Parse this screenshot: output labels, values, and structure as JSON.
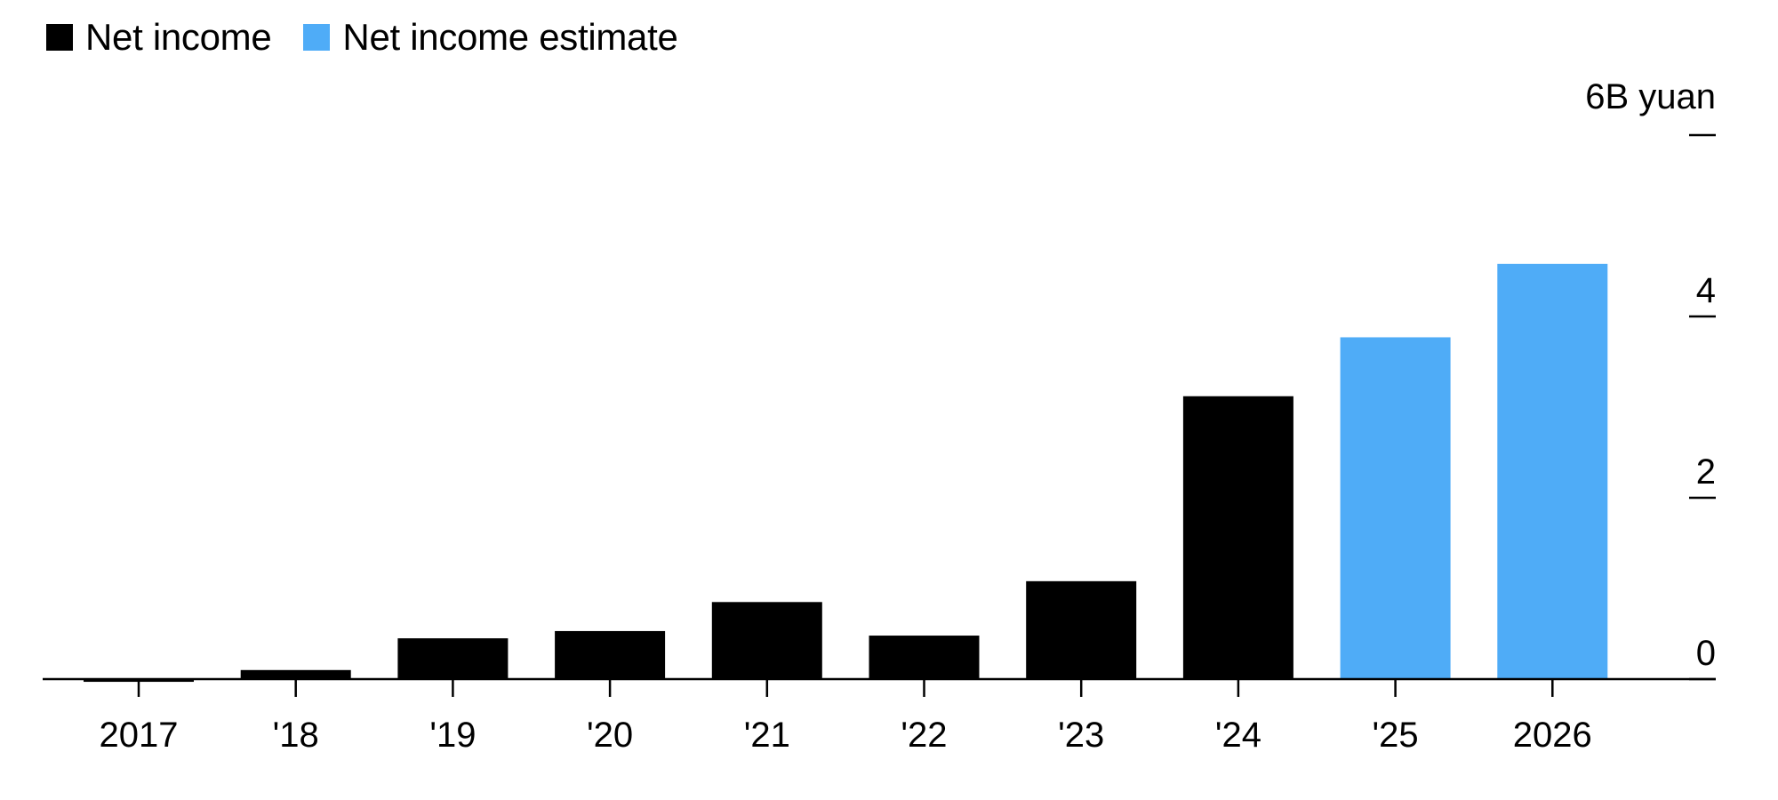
{
  "legend": {
    "items": [
      {
        "label": "Net income",
        "color": "#000000"
      },
      {
        "label": "Net income estimate",
        "color": "#4facf7"
      }
    ]
  },
  "chart_data": {
    "type": "bar",
    "categories": [
      "2017",
      "'18",
      "'19",
      "'20",
      "'21",
      "'22",
      "'23",
      "'24",
      "'25",
      "2026"
    ],
    "series": [
      {
        "name": "Net income",
        "values": [
          -0.03,
          0.1,
          0.45,
          0.53,
          0.85,
          0.48,
          1.08,
          3.12,
          null,
          null
        ],
        "color": "#000000"
      },
      {
        "name": "Net income estimate",
        "values": [
          null,
          null,
          null,
          null,
          null,
          null,
          null,
          null,
          3.77,
          4.58
        ],
        "color": "#4facf7"
      }
    ],
    "unit_label": "6B yuan",
    "yticks": [
      {
        "value": 0,
        "label": "0"
      },
      {
        "value": 2,
        "label": "2"
      },
      {
        "value": 4,
        "label": "4"
      },
      {
        "value": 6,
        "label": ""
      }
    ],
    "ylim": [
      -0.1,
      6
    ],
    "y_axis_position": "right",
    "grid": false,
    "legend_position": "top-left"
  }
}
